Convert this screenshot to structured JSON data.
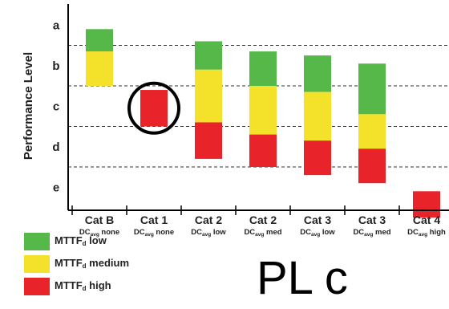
{
  "chart_data": {
    "type": "bar",
    "ylabel": "Performance Level",
    "levels": [
      "a",
      "b",
      "c",
      "d",
      "e"
    ],
    "categories": [
      {
        "name": "Cat B",
        "dc_prefix": "DC",
        "dc_sub": "avg",
        "dc_value": "none"
      },
      {
        "name": "Cat 1",
        "dc_prefix": "DC",
        "dc_sub": "avg",
        "dc_value": "none"
      },
      {
        "name": "Cat 2",
        "dc_prefix": "DC",
        "dc_sub": "avg",
        "dc_value": "low"
      },
      {
        "name": "Cat 2",
        "dc_prefix": "DC",
        "dc_sub": "avg",
        "dc_value": "med"
      },
      {
        "name": "Cat 3",
        "dc_prefix": "DC",
        "dc_sub": "avg",
        "dc_value": "low"
      },
      {
        "name": "Cat 3",
        "dc_prefix": "DC",
        "dc_sub": "avg",
        "dc_value": "med"
      },
      {
        "name": "Cat 4",
        "dc_prefix": "DC",
        "dc_sub": "avg",
        "dc_value": "high"
      }
    ],
    "series": [
      {
        "name": "MTTF low",
        "color": "#55b848",
        "ranges": [
          [
            0.6,
            1.15
          ],
          null,
          [
            0.9,
            1.6
          ],
          [
            1.15,
            2.0
          ],
          [
            1.25,
            2.15
          ],
          [
            1.45,
            2.7
          ],
          null
        ]
      },
      {
        "name": "MTTF medium",
        "color": "#f4e12a",
        "ranges": [
          [
            1.15,
            2.0
          ],
          null,
          [
            1.6,
            2.9
          ],
          [
            2.0,
            3.2
          ],
          [
            2.15,
            3.35
          ],
          [
            2.7,
            3.55
          ],
          null
        ]
      },
      {
        "name": "MTTF high",
        "color": "#e9232a",
        "ranges": [
          null,
          [
            2.1,
            3.0
          ],
          [
            2.9,
            3.8
          ],
          [
            3.2,
            4.0
          ],
          [
            3.35,
            4.2
          ],
          [
            3.55,
            4.4
          ],
          [
            4.6,
            5.25
          ]
        ]
      }
    ],
    "highlight": {
      "category_index": 1,
      "shape": "circle",
      "color": "#000000"
    },
    "grid": {
      "dashed_lines_between_levels": true
    }
  },
  "legend": [
    {
      "prefix": "MTTF",
      "sub": "d",
      "label": "low",
      "color": "#55b848"
    },
    {
      "prefix": "MTTF",
      "sub": "d",
      "label": "medium",
      "color": "#f4e12a"
    },
    {
      "prefix": "MTTF",
      "sub": "d",
      "label": "high",
      "color": "#e9232a"
    }
  ],
  "annotation": "PL c"
}
